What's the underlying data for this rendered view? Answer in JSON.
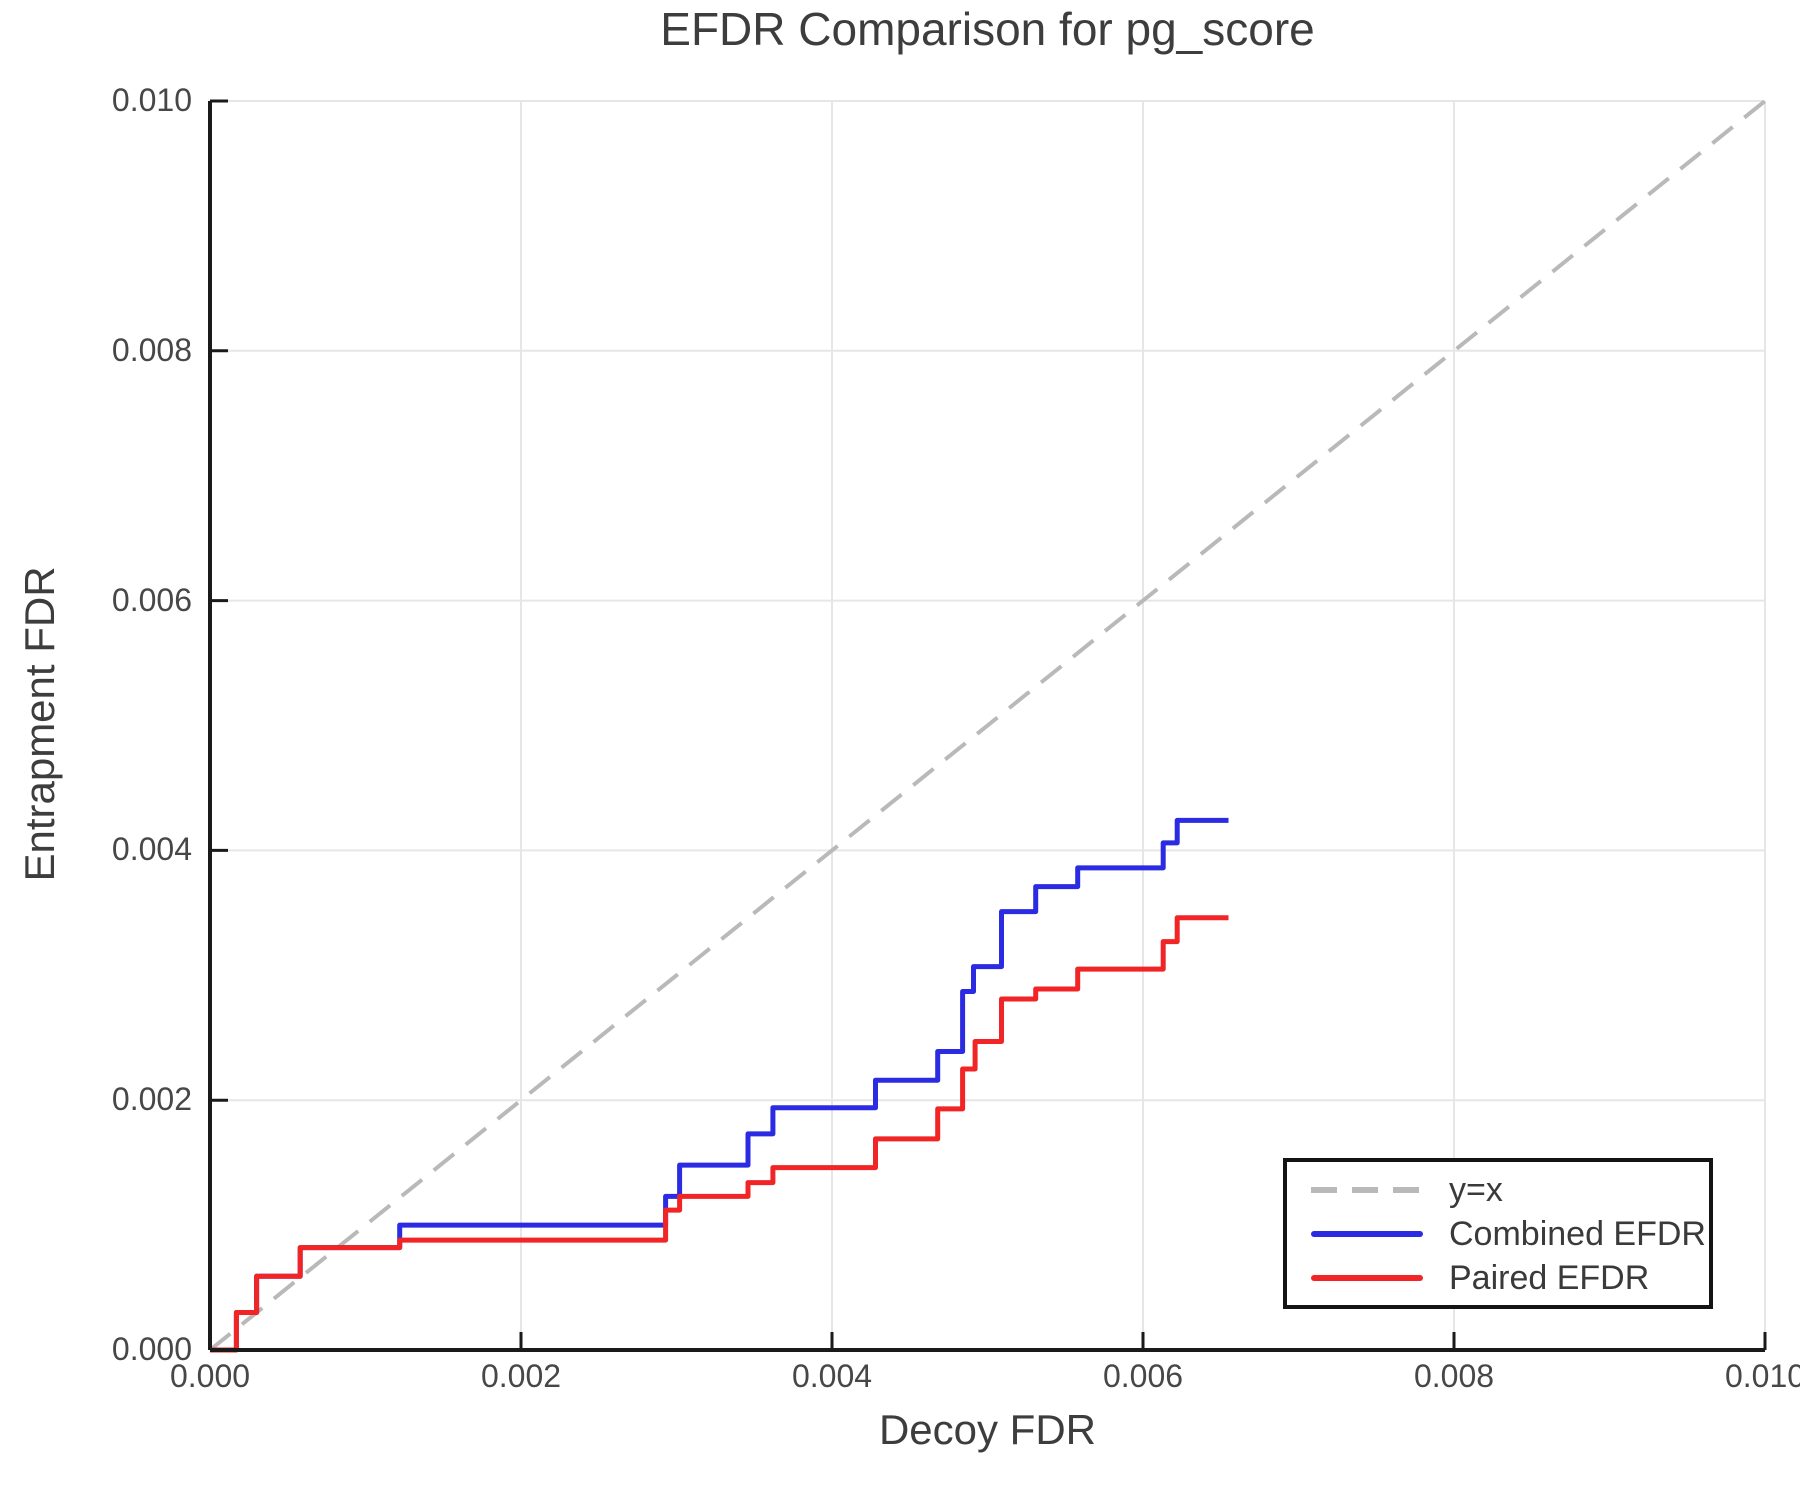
{
  "title": "EFDR Comparison for pg_score",
  "axes": {
    "x": {
      "label": "Decoy FDR",
      "ticks": [
        {
          "value": 0.0,
          "label": "0.000"
        },
        {
          "value": 0.002,
          "label": "0.002"
        },
        {
          "value": 0.004,
          "label": "0.004"
        },
        {
          "value": 0.006,
          "label": "0.006"
        },
        {
          "value": 0.008,
          "label": "0.008"
        },
        {
          "value": 0.01,
          "label": "0.010"
        }
      ]
    },
    "y": {
      "label": "Entrapment FDR",
      "ticks": [
        {
          "value": 0.0,
          "label": "0.000"
        },
        {
          "value": 0.002,
          "label": "0.002"
        },
        {
          "value": 0.004,
          "label": "0.004"
        },
        {
          "value": 0.006,
          "label": "0.006"
        },
        {
          "value": 0.008,
          "label": "0.008"
        },
        {
          "value": 0.01,
          "label": "0.010"
        }
      ]
    }
  },
  "legend": {
    "items": [
      {
        "label": "y=x",
        "line_style": "dashed",
        "color": "#b9b9b9"
      },
      {
        "label": "Combined EFDR",
        "line_style": "solid",
        "color": "#2b2be4"
      },
      {
        "label": "Paired EFDR",
        "line_style": "solid",
        "color": "#f12525"
      }
    ]
  },
  "colors": {
    "grid": "#e6e6e6",
    "spine": "#1a1a1a",
    "reference": "#b9b9b9",
    "combined": "#2b2be4",
    "paired": "#f12525",
    "text": "#3d3d3d"
  },
  "chart_data": {
    "type": "line",
    "title": "EFDR Comparison for pg_score",
    "xlabel": "Decoy FDR",
    "ylabel": "Entrapment FDR",
    "xlim": [
      0.0,
      0.01
    ],
    "ylim": [
      0.0,
      0.01
    ],
    "x_ticks": [
      0.0,
      0.002,
      0.004,
      0.006,
      0.008,
      0.01
    ],
    "y_ticks": [
      0.0,
      0.002,
      0.004,
      0.006,
      0.008,
      0.01
    ],
    "grid": true,
    "legend_position": "lower right",
    "series": [
      {
        "name": "y=x",
        "type": "reference",
        "style": "dashed",
        "color": "#b9b9b9",
        "x": [
          0.0,
          0.01
        ],
        "y": [
          0.0,
          0.01
        ]
      },
      {
        "name": "Combined EFDR",
        "type": "step",
        "color": "#2b2be4",
        "start": [
          0.0,
          0.0
        ],
        "x_end": 0.00655,
        "steps": [
          [
            0.00017,
            0.0003
          ],
          [
            0.0003,
            0.00059
          ],
          [
            0.00058,
            0.00082
          ],
          [
            0.00122,
            0.001
          ],
          [
            0.00293,
            0.00123
          ],
          [
            0.00302,
            0.00148
          ],
          [
            0.00346,
            0.00173
          ],
          [
            0.00362,
            0.00194
          ],
          [
            0.00428,
            0.00216
          ],
          [
            0.00468,
            0.00239
          ],
          [
            0.00484,
            0.00287
          ],
          [
            0.00491,
            0.00307
          ],
          [
            0.00509,
            0.00351
          ],
          [
            0.00531,
            0.00371
          ],
          [
            0.00558,
            0.00386
          ],
          [
            0.00613,
            0.00406
          ],
          [
            0.00622,
            0.00424
          ]
        ]
      },
      {
        "name": "Paired EFDR",
        "type": "step",
        "color": "#f12525",
        "start": [
          0.0,
          0.0
        ],
        "x_end": 0.00655,
        "steps": [
          [
            0.00017,
            0.0003
          ],
          [
            0.0003,
            0.00059
          ],
          [
            0.00058,
            0.00082
          ],
          [
            0.00122,
            0.00088
          ],
          [
            0.00293,
            0.00112
          ],
          [
            0.00302,
            0.00123
          ],
          [
            0.00346,
            0.00134
          ],
          [
            0.00362,
            0.00146
          ],
          [
            0.00428,
            0.00169
          ],
          [
            0.00468,
            0.00193
          ],
          [
            0.00484,
            0.00225
          ],
          [
            0.00492,
            0.00247
          ],
          [
            0.00509,
            0.00281
          ],
          [
            0.00531,
            0.00289
          ],
          [
            0.00558,
            0.00305
          ],
          [
            0.00613,
            0.00327
          ],
          [
            0.00622,
            0.00346
          ]
        ]
      }
    ]
  }
}
